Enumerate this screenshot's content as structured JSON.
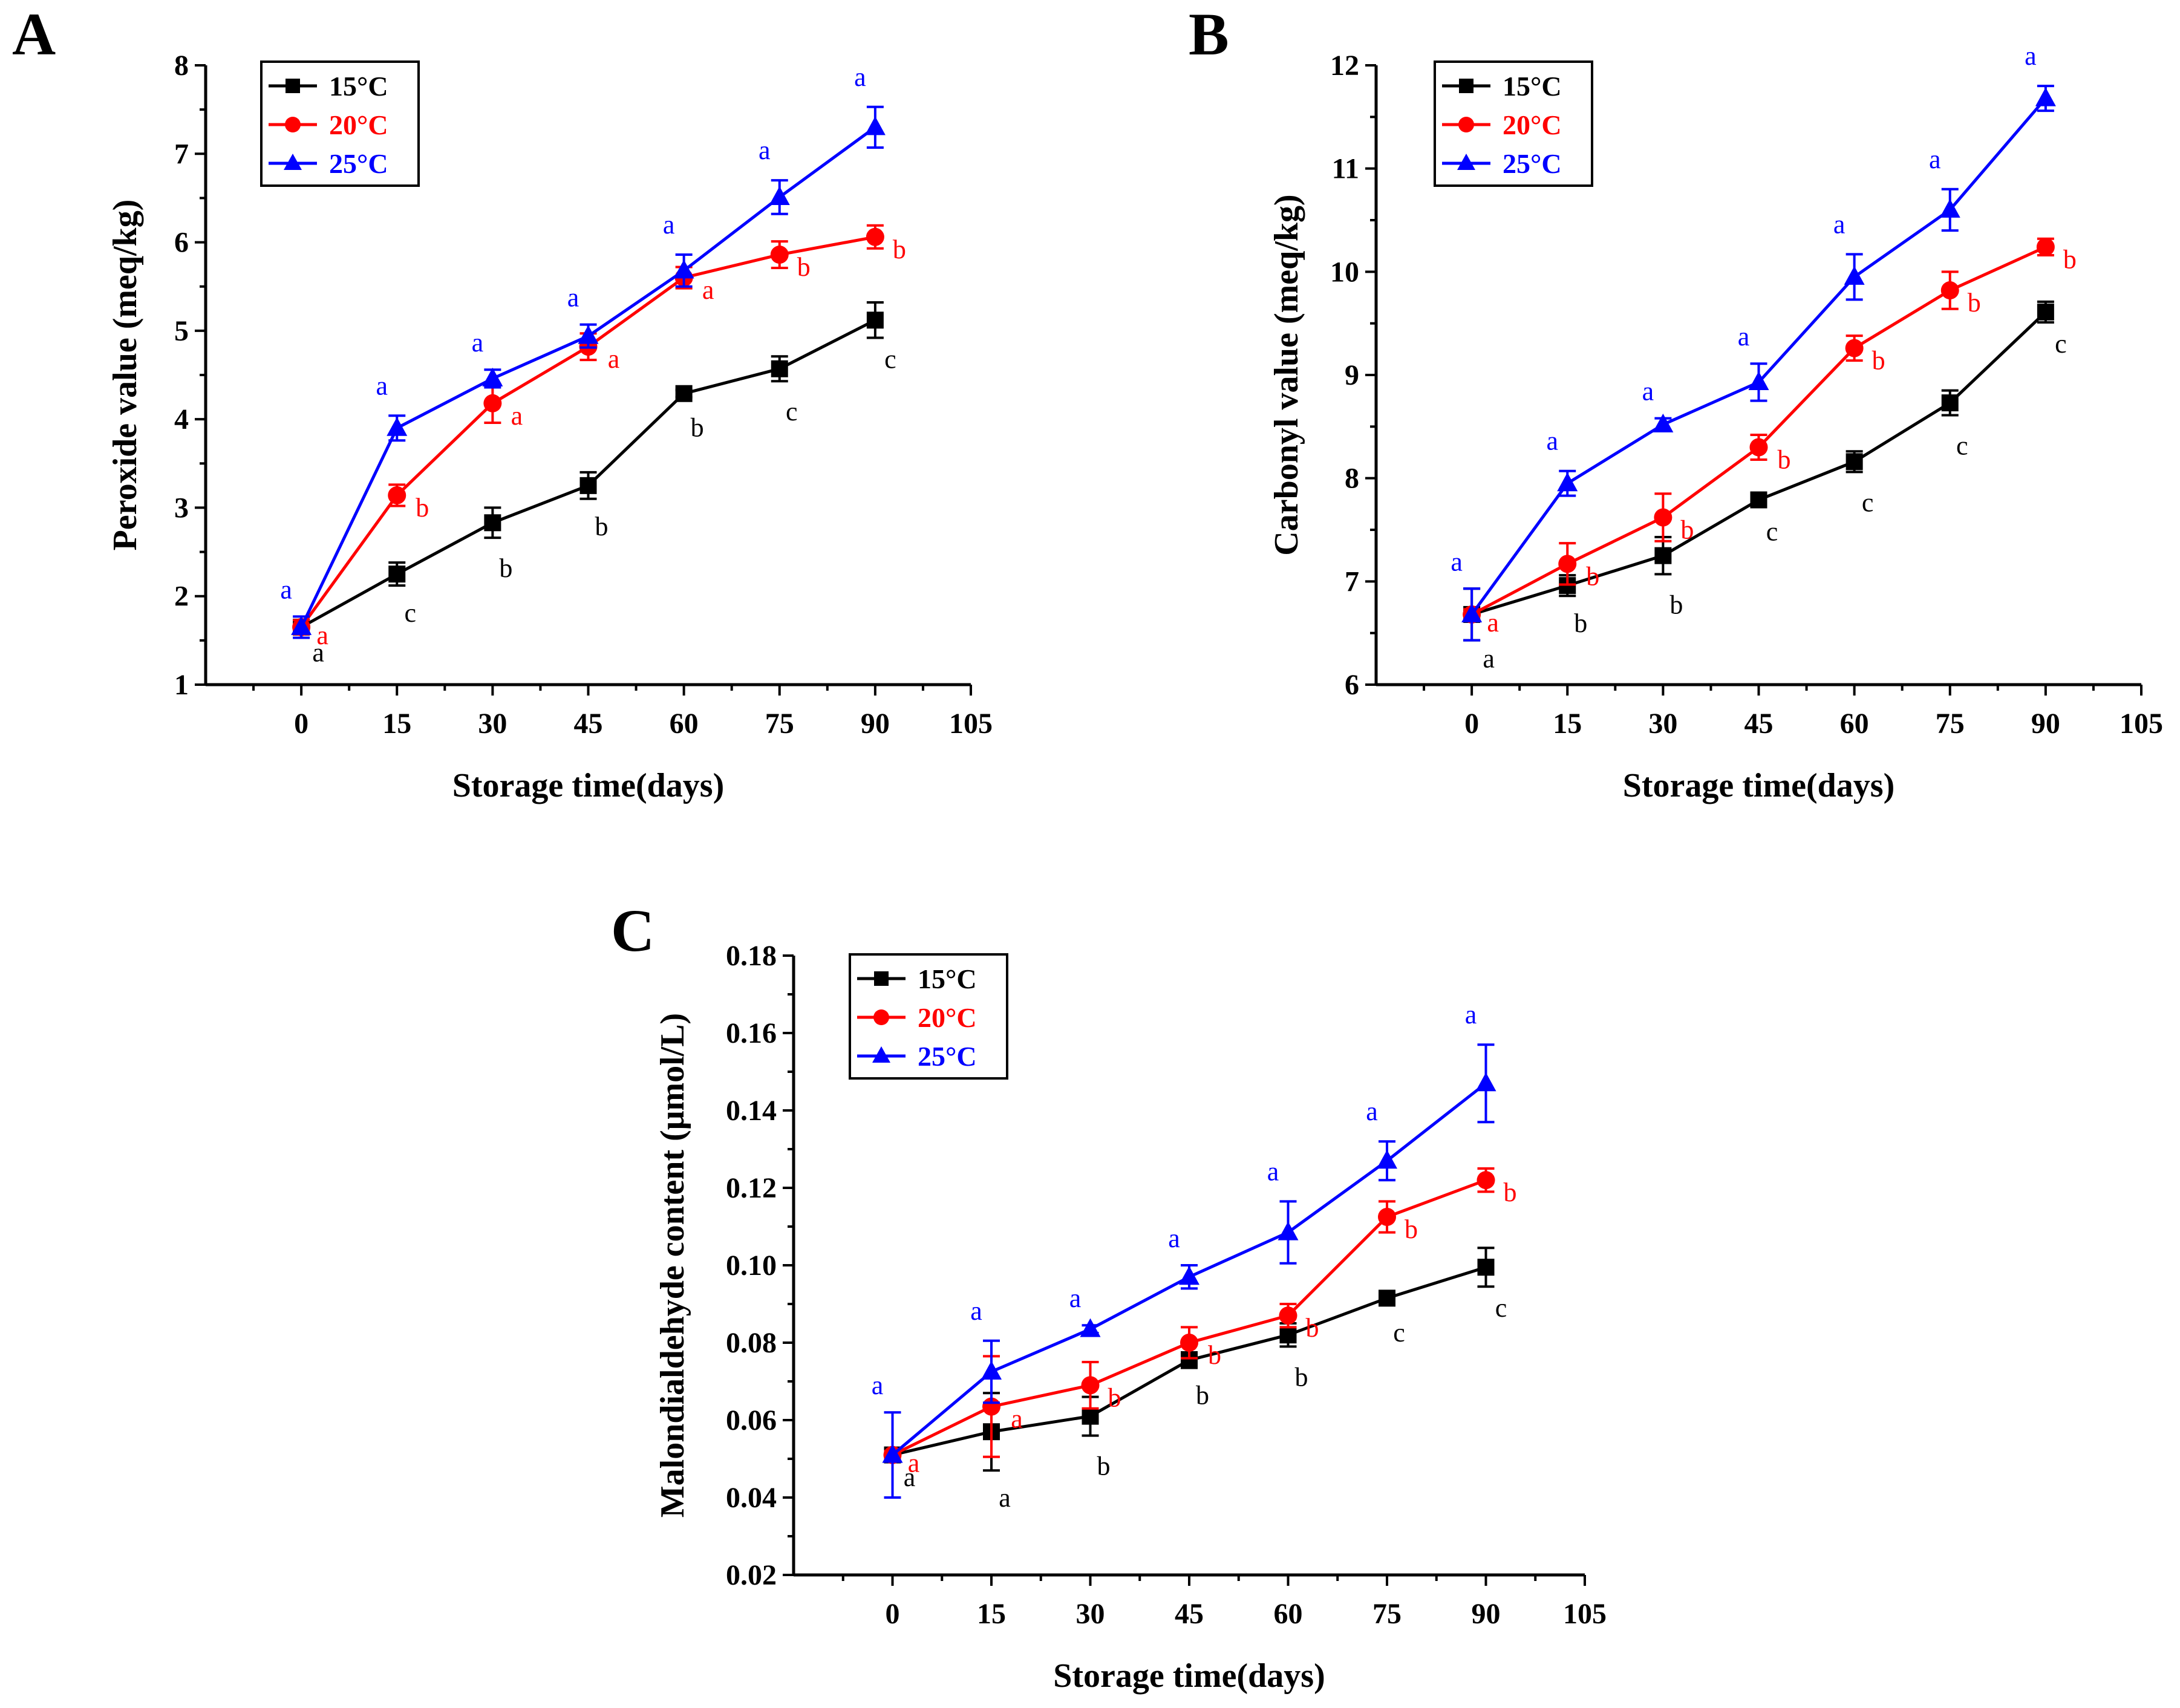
{
  "chart_data": [
    {
      "id": "A",
      "type": "line",
      "panel_label": "A",
      "xlabel": "Storage time(days)",
      "ylabel": "Peroxide value (meq/kg)",
      "xlim": [
        -15,
        105
      ],
      "ylim": [
        1,
        8
      ],
      "xticks": [
        "0",
        "15",
        "30",
        "45",
        "60",
        "75",
        "90",
        "105"
      ],
      "yticks": [
        "1",
        "2",
        "3",
        "4",
        "5",
        "6",
        "7",
        "8"
      ],
      "x": [
        0,
        15,
        30,
        45,
        60,
        75,
        90
      ],
      "legend_position": "top-left",
      "series": [
        {
          "name": "15°C",
          "color": "#000000",
          "marker": "square",
          "values": [
            1.65,
            2.25,
            2.83,
            3.25,
            4.29,
            4.57,
            5.12
          ],
          "errors": [
            0.08,
            0.13,
            0.17,
            0.15,
            0.04,
            0.14,
            0.2
          ],
          "letters": [
            "a",
            "c",
            "b",
            "b",
            "b",
            "c",
            "c"
          ]
        },
        {
          "name": "20°C",
          "color": "#FF0000",
          "marker": "circle",
          "values": [
            1.65,
            3.14,
            4.18,
            4.82,
            5.6,
            5.86,
            6.06
          ],
          "errors": [
            0.08,
            0.12,
            0.22,
            0.15,
            0.12,
            0.15,
            0.13
          ],
          "letters": [
            "a",
            "b",
            "a",
            "a",
            "a",
            "b",
            "b"
          ]
        },
        {
          "name": "25°C",
          "color": "#0000FF",
          "marker": "triangle",
          "values": [
            1.65,
            3.9,
            4.46,
            4.94,
            5.68,
            6.51,
            7.3
          ],
          "errors": [
            0.12,
            0.14,
            0.1,
            0.13,
            0.18,
            0.19,
            0.23
          ],
          "letters": [
            "a",
            "a",
            "a",
            "a",
            "a",
            "a",
            "a"
          ]
        }
      ]
    },
    {
      "id": "B",
      "type": "line",
      "panel_label": "B",
      "xlabel": "Storage time(days)",
      "ylabel": "Carbonyl value (meq/kg)",
      "xlim": [
        -15,
        105
      ],
      "ylim": [
        6,
        12
      ],
      "xticks": [
        "0",
        "15",
        "30",
        "45",
        "60",
        "75",
        "90",
        "105"
      ],
      "yticks": [
        "6",
        "7",
        "8",
        "9",
        "10",
        "11",
        "12"
      ],
      "x": [
        0,
        15,
        30,
        45,
        60,
        75,
        90
      ],
      "legend_position": "top-left",
      "series": [
        {
          "name": "15°C",
          "color": "#000000",
          "marker": "square",
          "values": [
            6.68,
            6.96,
            7.25,
            7.79,
            8.16,
            8.73,
            9.61
          ],
          "errors": [
            0.25,
            0.1,
            0.18,
            0.04,
            0.1,
            0.12,
            0.1
          ],
          "letters": [
            "a",
            "b",
            "b",
            "c",
            "c",
            "c",
            "c"
          ]
        },
        {
          "name": "20°C",
          "color": "#FF0000",
          "marker": "circle",
          "values": [
            6.68,
            7.17,
            7.62,
            8.3,
            9.26,
            9.82,
            10.24
          ],
          "errors": [
            0.05,
            0.2,
            0.23,
            0.12,
            0.12,
            0.18,
            0.08
          ],
          "letters": [
            "a",
            "b",
            "b",
            "b",
            "b",
            "b",
            "b"
          ]
        },
        {
          "name": "25°C",
          "color": "#0000FF",
          "marker": "triangle",
          "values": [
            6.68,
            7.95,
            8.52,
            8.93,
            9.95,
            10.6,
            11.68
          ],
          "errors": [
            0.25,
            0.12,
            0.06,
            0.18,
            0.22,
            0.2,
            0.12
          ],
          "letters": [
            "a",
            "a",
            "a",
            "a",
            "a",
            "a",
            "a"
          ]
        }
      ]
    },
    {
      "id": "C",
      "type": "line",
      "panel_label": "C",
      "xlabel": "Storage time(days)",
      "ylabel": "Malondialdehyde content (μmol/L)",
      "xlim": [
        -15,
        105
      ],
      "ylim": [
        0.02,
        0.18
      ],
      "xticks": [
        "0",
        "15",
        "30",
        "45",
        "60",
        "75",
        "90",
        "105"
      ],
      "yticks": [
        "0.02",
        "0.04",
        "0.06",
        "0.08",
        "0.10",
        "0.12",
        "0.14",
        "0.16",
        "0.18"
      ],
      "x": [
        0,
        15,
        30,
        45,
        60,
        75,
        90
      ],
      "legend_position": "top-left",
      "series": [
        {
          "name": "15°C",
          "color": "#000000",
          "marker": "square",
          "values": [
            0.051,
            0.057,
            0.061,
            0.0755,
            0.082,
            0.0915,
            0.0995
          ],
          "errors": [
            0.001,
            0.01,
            0.005,
            0.002,
            0.003,
            0.001,
            0.005
          ],
          "letters": [
            "a",
            "a",
            "b",
            "b",
            "b",
            "c",
            "c"
          ]
        },
        {
          "name": "20°C",
          "color": "#FF0000",
          "marker": "circle",
          "values": [
            0.051,
            0.0635,
            0.069,
            0.08,
            0.087,
            0.1125,
            0.122
          ],
          "errors": [
            0.001,
            0.013,
            0.006,
            0.004,
            0.003,
            0.004,
            0.003
          ],
          "letters": [
            "a",
            "a",
            "b",
            "b",
            "b",
            "b",
            "b"
          ]
        },
        {
          "name": "25°C",
          "color": "#0000FF",
          "marker": "triangle",
          "values": [
            0.051,
            0.0725,
            0.0835,
            0.097,
            0.1085,
            0.127,
            0.147
          ],
          "errors": [
            0.011,
            0.008,
            0.001,
            0.003,
            0.008,
            0.005,
            0.01
          ],
          "letters": [
            "a",
            "a",
            "a",
            "a",
            "a",
            "a",
            "a"
          ]
        }
      ]
    }
  ]
}
